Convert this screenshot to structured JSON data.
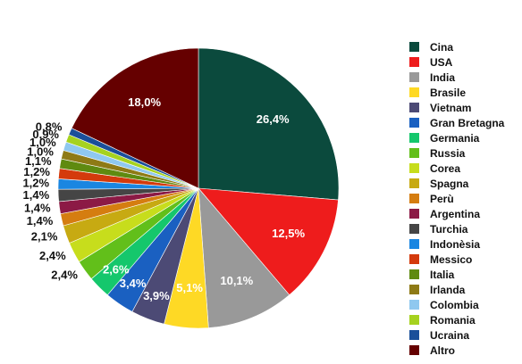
{
  "chart_data": {
    "type": "pie",
    "start_angle_deg": 0,
    "direction": "clockwise",
    "legend_position": "right",
    "slices": [
      {
        "label": "Cina",
        "value": 26.4,
        "display": "26,4%",
        "color": "#0b4a3d"
      },
      {
        "label": "USA",
        "value": 12.5,
        "display": "12,5%",
        "color": "#ee1c1c"
      },
      {
        "label": "India",
        "value": 10.1,
        "display": "10,1%",
        "color": "#999999"
      },
      {
        "label": "Brasile",
        "value": 5.1,
        "display": "5,1%",
        "color": "#fed925"
      },
      {
        "label": "Vietnam",
        "value": 3.9,
        "display": "3,9%",
        "color": "#4c4a75"
      },
      {
        "label": "Gran Bretagna",
        "value": 3.4,
        "display": "3,4%",
        "color": "#1a60c1"
      },
      {
        "label": "Germania",
        "value": 2.6,
        "display": "2,6%",
        "color": "#15c76c"
      },
      {
        "label": "Russia",
        "value": 2.4,
        "display": "2,4%",
        "color": "#62bf1a"
      },
      {
        "label": "Corea",
        "value": 2.4,
        "display": "2,4%",
        "color": "#c7dd1c"
      },
      {
        "label": "Spagna",
        "value": 2.1,
        "display": "2,1%",
        "color": "#c7aa12"
      },
      {
        "label": "Perù",
        "value": 1.4,
        "display": "1,4%",
        "color": "#d57d10"
      },
      {
        "label": "Argentina",
        "value": 1.4,
        "display": "1,4%",
        "color": "#8c1a45"
      },
      {
        "label": "Turchia",
        "value": 1.4,
        "display": "1,4%",
        "color": "#454545"
      },
      {
        "label": "Indonèsia",
        "value": 1.2,
        "display": "1,2%",
        "color": "#1a86e1"
      },
      {
        "label": "Messico",
        "value": 1.2,
        "display": "1,2%",
        "color": "#d43a0c"
      },
      {
        "label": "Italia",
        "value": 1.1,
        "display": "1,1%",
        "color": "#5f8a10"
      },
      {
        "label": "Irlanda",
        "value": 1.0,
        "display": "1,0%",
        "color": "#8e7a15"
      },
      {
        "label": "Colombia",
        "value": 1.0,
        "display": "1,0%",
        "color": "#8fc8ef"
      },
      {
        "label": "Romania",
        "value": 0.9,
        "display": "0,9%",
        "color": "#a6d21f"
      },
      {
        "label": "Ucraina",
        "value": 0.8,
        "display": "0,8%",
        "color": "#1a4f9a"
      },
      {
        "label": "Altro",
        "value": 18.0,
        "display": "18,0%",
        "color": "#650000"
      }
    ]
  }
}
